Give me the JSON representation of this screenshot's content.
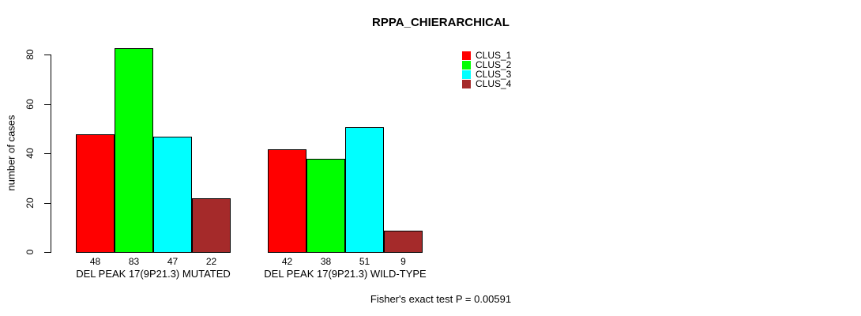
{
  "title": "RPPA_CHIERARCHICAL",
  "footer": "Fisher's exact test P = 0.00591",
  "chart_data": {
    "type": "bar",
    "title": "RPPA_CHIERARCHICAL",
    "ylabel": "number of cases",
    "xlabel": "",
    "ylim": [
      0,
      80
    ],
    "yticks": [
      0,
      20,
      40,
      60,
      80
    ],
    "grid": false,
    "legend_position": "top-right",
    "series": [
      "CLUS_1",
      "CLUS_2",
      "CLUS_3",
      "CLUS_4"
    ],
    "colors": [
      "#ff0000",
      "#00ff00",
      "#00ffff",
      "#a52a2a"
    ],
    "groups": [
      {
        "label": "DEL PEAK 17(9P21.3) MUTATED",
        "values": [
          48,
          83,
          47,
          22
        ]
      },
      {
        "label": "DEL PEAK 17(9P21.3) WILD-TYPE",
        "values": [
          42,
          38,
          51,
          9
        ]
      }
    ],
    "annotation": "Fisher's exact test P = 0.00591"
  }
}
